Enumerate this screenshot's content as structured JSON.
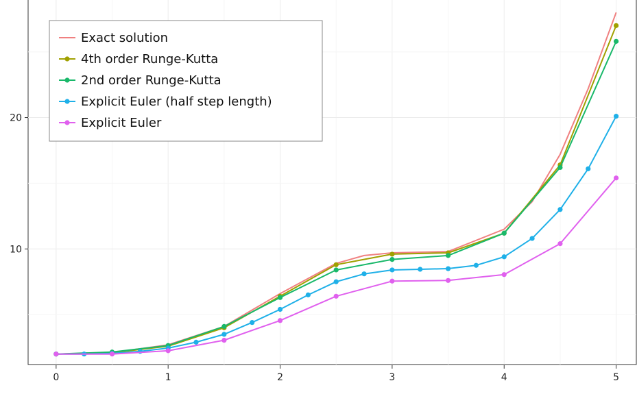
{
  "chart_data": {
    "type": "line",
    "title": "",
    "xlabel": "",
    "ylabel": "",
    "xlim": [
      -0.25,
      5.18
    ],
    "ylim": [
      1.2,
      29.0
    ],
    "xticks": [
      0,
      1,
      2,
      3,
      4,
      5
    ],
    "yticks": [
      10,
      20
    ],
    "grid": true,
    "legend_position": "top-left",
    "series": [
      {
        "name": "Exact solution",
        "color": "#f08080",
        "markers": false,
        "x": [
          0,
          0.5,
          1,
          1.5,
          2,
          2.5,
          2.75,
          3,
          3.5,
          4,
          4.25,
          4.5,
          4.75,
          5
        ],
        "y": [
          2.0,
          2.1,
          2.7,
          4.1,
          6.6,
          8.9,
          9.5,
          9.7,
          9.8,
          11.5,
          13.6,
          17.2,
          22.2,
          28.0
        ]
      },
      {
        "name": "4th order Runge-Kutta",
        "color": "#a0a000",
        "markers": true,
        "x": [
          0,
          0.5,
          1,
          1.5,
          2,
          2.5,
          3,
          3.5,
          4,
          4.5,
          5
        ],
        "y": [
          2.0,
          2.1,
          2.6,
          4.0,
          6.4,
          8.8,
          9.6,
          9.7,
          11.2,
          16.4,
          27.0
        ]
      },
      {
        "name": "2nd order Runge-Kutta",
        "color": "#19b86a",
        "markers": true,
        "x": [
          0,
          0.5,
          1,
          1.5,
          2,
          2.5,
          3,
          3.5,
          4,
          4.5,
          5
        ],
        "y": [
          2.0,
          2.15,
          2.65,
          4.1,
          6.3,
          8.4,
          9.2,
          9.5,
          11.2,
          16.2,
          25.8
        ]
      },
      {
        "name": "Explicit Euler (half step length)",
        "color": "#1fb0e8",
        "markers": true,
        "x": [
          0,
          0.25,
          0.5,
          0.75,
          1,
          1.25,
          1.5,
          1.75,
          2,
          2.25,
          2.5,
          2.75,
          3,
          3.25,
          3.5,
          3.75,
          4,
          4.25,
          4.5,
          4.75,
          5
        ],
        "y": [
          2.0,
          2.0,
          2.05,
          2.2,
          2.45,
          2.9,
          3.5,
          4.4,
          5.4,
          6.5,
          7.5,
          8.1,
          8.4,
          8.45,
          8.5,
          8.75,
          9.4,
          10.8,
          13.0,
          16.1,
          20.1
        ]
      },
      {
        "name": "Explicit Euler",
        "color": "#e060ee",
        "markers": true,
        "x": [
          0,
          0.5,
          1,
          1.5,
          2,
          2.5,
          3,
          3.5,
          4,
          4.5,
          5
        ],
        "y": [
          2.0,
          2.0,
          2.25,
          3.05,
          4.55,
          6.4,
          7.55,
          7.6,
          8.05,
          10.4,
          15.4
        ]
      }
    ]
  }
}
